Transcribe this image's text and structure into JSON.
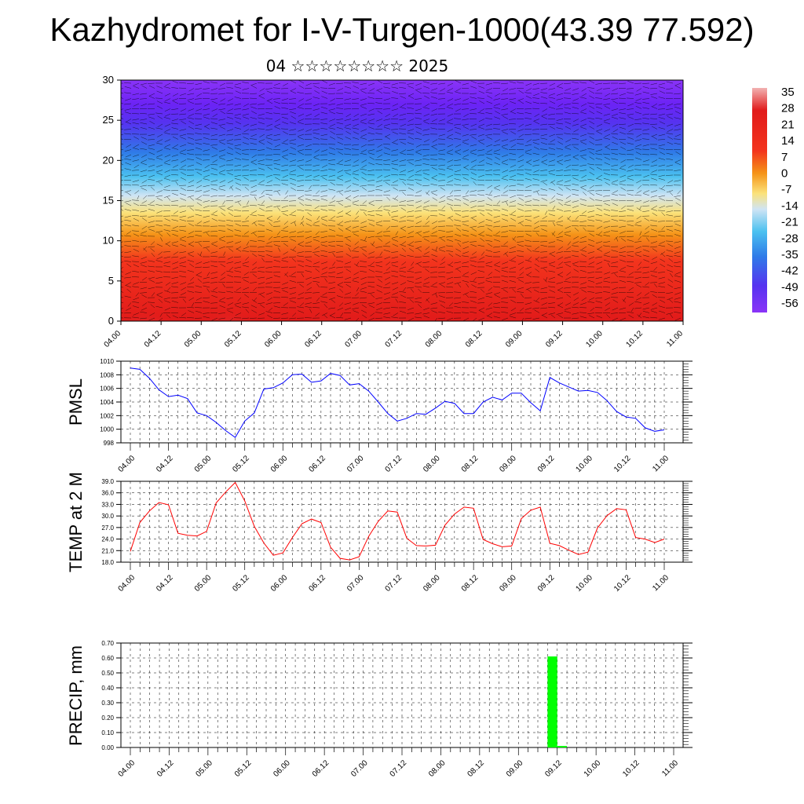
{
  "title": "Kazhydromet for I-V-Turgen-1000(43.39 77.592)",
  "subtitle": "04 ☆☆☆☆☆☆☆☆ 2025",
  "x_tick_labels": [
    "04.00",
    "04.12",
    "05.00",
    "05.12",
    "06.00",
    "06.12",
    "07.00",
    "07.12",
    "08.00",
    "08.12",
    "09.00",
    "09.12",
    "10.00",
    "10.12",
    "11.00"
  ],
  "colors": {
    "pmsl_line": "#0000ff",
    "temp_line": "#ff0000",
    "precip_bar": "#00ff00"
  },
  "chart_data": [
    {
      "type": "heatmap",
      "title": "",
      "xlabel": "",
      "ylabel": "",
      "ylim": [
        0,
        30
      ],
      "yticks": [
        0,
        5,
        10,
        15,
        20,
        25,
        30
      ],
      "colorbar": {
        "labels": [
          "35",
          "28",
          "21",
          "14",
          "7",
          "0",
          "-7",
          "-14",
          "-21",
          "-28",
          "-35",
          "-42",
          "-49",
          "-56"
        ],
        "range": [
          -60,
          38
        ]
      },
      "overlay": "wind vectors"
    },
    {
      "type": "line",
      "ylabel": "PMSL",
      "ylim": [
        998,
        1010
      ],
      "yticks": [
        "998",
        "1000",
        "1002",
        "1004",
        "1006",
        "1008",
        "1010"
      ],
      "x": [
        0,
        0.125,
        0.25,
        0.375,
        0.5,
        0.625,
        0.75,
        0.875,
        1.0,
        1.125,
        1.25,
        1.375,
        1.5,
        1.625,
        1.75,
        1.875,
        2.0,
        2.125,
        2.25,
        2.375,
        2.5,
        2.625,
        2.75,
        2.875,
        3.0,
        3.125,
        3.25,
        3.375,
        3.5,
        3.625,
        3.75,
        3.875,
        4.0,
        4.125,
        4.25,
        4.375,
        4.5,
        4.625,
        4.75,
        4.875,
        5.0,
        5.125,
        5.25,
        5.375,
        5.5,
        5.625,
        5.75,
        5.875,
        6.0,
        6.125,
        6.25,
        6.375,
        6.5,
        6.625,
        6.75,
        6.875,
        7.0
      ],
      "series": [
        {
          "values": [
            1009.0,
            1008.8,
            1007.5,
            1005.8,
            1004.8,
            1005.0,
            1004.5,
            1002.4,
            1002.0,
            1001.0,
            999.8,
            998.8,
            1001.2,
            1002.4,
            1005.9,
            1006.1,
            1006.8,
            1008.0,
            1008.1,
            1006.9,
            1007.1,
            1008.2,
            1007.9,
            1006.5,
            1006.7,
            1005.6,
            1004.0,
            1002.3,
            1001.2,
            1001.6,
            1002.3,
            1002.2,
            1003.1,
            1004.1,
            1003.8,
            1002.3,
            1002.3,
            1004.0,
            1004.7,
            1004.3,
            1005.3,
            1005.3,
            1003.9,
            1002.7,
            1007.6,
            1006.8,
            1006.2,
            1005.6,
            1005.7,
            1005.4,
            1004.2,
            1002.6,
            1001.8,
            1001.6,
            1000.2,
            999.7,
            999.9
          ]
        }
      ]
    },
    {
      "type": "line",
      "ylabel": "TEMP at 2 M",
      "ylim": [
        18,
        39
      ],
      "yticks": [
        "18.0",
        "21.0",
        "24.0",
        "27.0",
        "30.0",
        "33.0",
        "36.0",
        "39.0"
      ],
      "x": [
        0,
        0.125,
        0.25,
        0.375,
        0.5,
        0.625,
        0.75,
        0.875,
        1.0,
        1.125,
        1.25,
        1.375,
        1.5,
        1.625,
        1.75,
        1.875,
        2.0,
        2.125,
        2.25,
        2.375,
        2.5,
        2.625,
        2.75,
        2.875,
        3.0,
        3.125,
        3.25,
        3.375,
        3.5,
        3.625,
        3.75,
        3.875,
        4.0,
        4.125,
        4.25,
        4.375,
        4.5,
        4.625,
        4.75,
        4.875,
        5.0,
        5.125,
        5.25,
        5.375,
        5.5,
        5.625,
        5.75,
        5.875,
        6.0,
        6.125,
        6.25,
        6.375,
        6.5,
        6.625,
        6.75,
        6.875,
        7.0
      ],
      "series": [
        {
          "values": [
            20.8,
            28.3,
            31.3,
            33.5,
            32.9,
            25.5,
            25.0,
            24.8,
            26.0,
            33.4,
            36.2,
            38.7,
            33.9,
            27.3,
            23.0,
            19.8,
            20.4,
            24.4,
            28.0,
            29.2,
            28.3,
            21.9,
            19.0,
            18.6,
            19.4,
            24.7,
            28.6,
            31.3,
            31.0,
            24.2,
            22.3,
            22.2,
            22.4,
            27.6,
            30.5,
            32.3,
            32.0,
            23.9,
            22.8,
            22.0,
            22.2,
            29.3,
            31.5,
            32.3,
            22.9,
            22.3,
            21.1,
            20.0,
            20.6,
            26.9,
            30.1,
            31.9,
            31.6,
            24.4,
            24.0,
            23.1,
            24.0
          ]
        }
      ]
    },
    {
      "type": "bar",
      "ylabel": "PRECIP, mm",
      "ylim": [
        0,
        0.7
      ],
      "yticks": [
        "0.00",
        "0.10",
        "0.20",
        "0.30",
        "0.40",
        "0.50",
        "0.60",
        "0.70"
      ],
      "bars": [
        {
          "x": 5.375,
          "width": 0.125,
          "value": 0.61
        },
        {
          "x": 5.5,
          "width": 0.125,
          "value": 0.01
        }
      ]
    }
  ]
}
